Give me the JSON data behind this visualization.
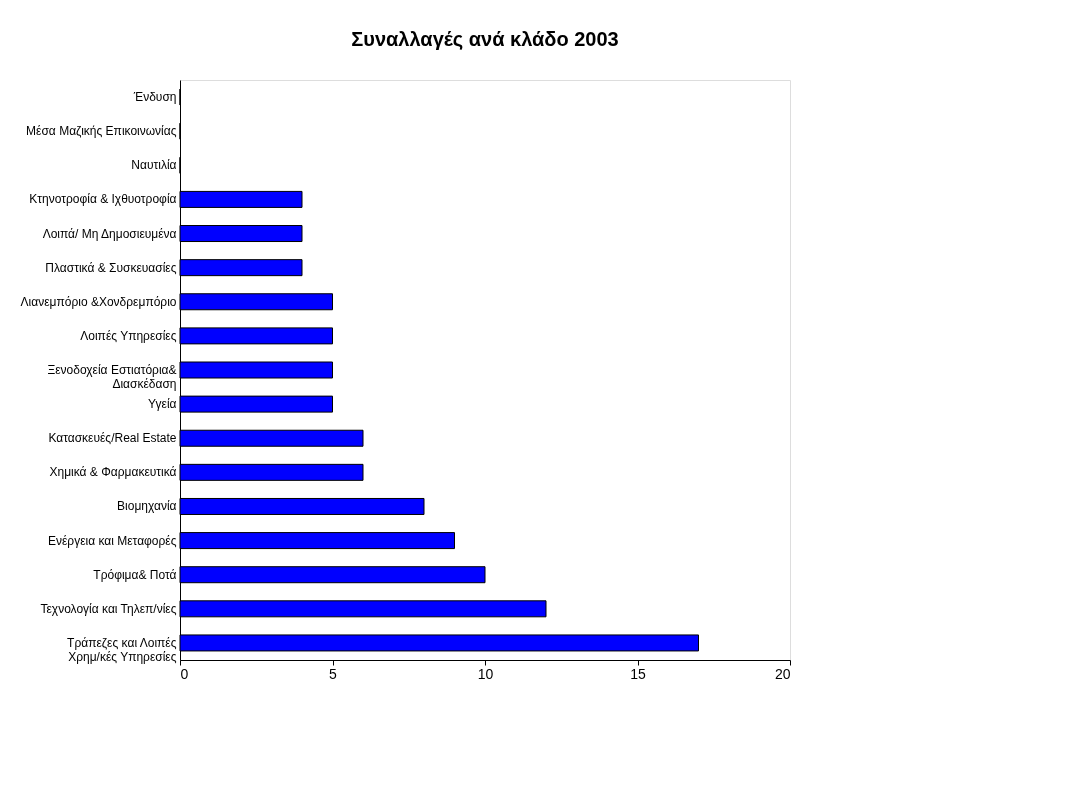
{
  "chart_data": {
    "type": "bar",
    "orientation": "horizontal",
    "title": "Συναλλαγές ανά κλάδο 2003",
    "categories": [
      "Ένδυση",
      "Μέσα Μαζικής Επικοινωνίας",
      "Ναυτιλία",
      "Κτηνοτροφία & Ιχθυοτροφία",
      "Λοιπά/ Μη Δημοσιευμένα",
      "Πλαστικά & Συσκευασίες",
      "Λιανεμπόριο &Χονδρεμπόριο",
      "Λοιπές Υπηρεσίες",
      "Ξενοδοχεία Εστιατόρια&\nΔιασκέδαση",
      "Υγεία",
      "Κατασκευές/Real Estate",
      "Χημικά & Φαρμακευτικά",
      "Βιομηχανία",
      "Ενέργεια και Μεταφορές",
      "Τρόφιμα& Ποτά",
      "Τεχνολογία και Τηλεπ/νίες",
      "Τράπεζες και Λοιπές\nΧρημ/κές Υπηρεσίες"
    ],
    "values": [
      0,
      0,
      0,
      4,
      4,
      4,
      5,
      5,
      5,
      5,
      6,
      6,
      8,
      9,
      10,
      12,
      17
    ],
    "color": "#0000ff",
    "xlim": [
      0,
      20
    ],
    "xticks": [
      0,
      5,
      10,
      15,
      20
    ],
    "grid": false
  }
}
